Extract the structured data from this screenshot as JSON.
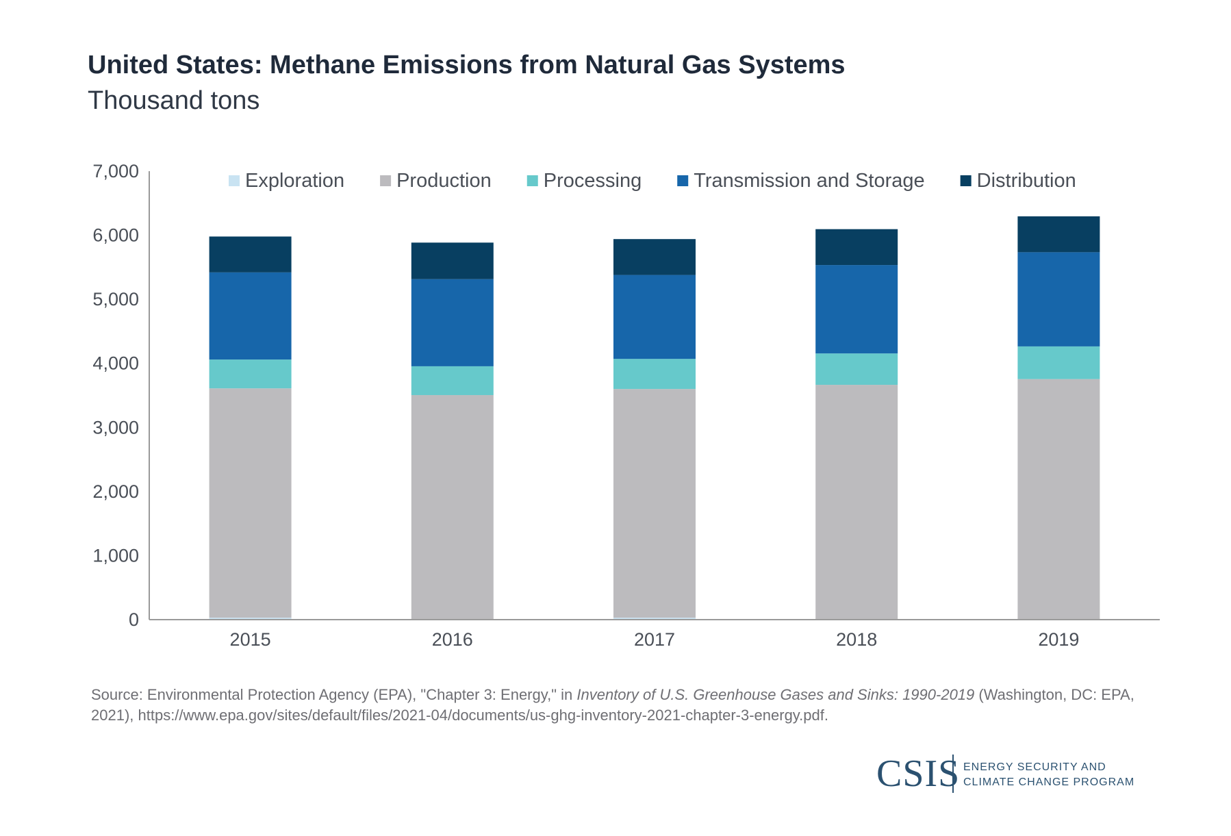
{
  "header": {
    "title": "United States: Methane Emissions from Natural Gas Systems",
    "subtitle": "Thousand tons"
  },
  "chart_data": {
    "type": "bar",
    "stacked": true,
    "title": "United States: Methane Emissions from Natural Gas Systems",
    "ylabel": "Thousand tons",
    "xlabel": "",
    "categories": [
      "2015",
      "2016",
      "2017",
      "2018",
      "2019"
    ],
    "series": [
      {
        "name": "Exploration",
        "color": "#c9e3f2",
        "values": [
          30,
          5,
          30,
          5,
          5
        ]
      },
      {
        "name": "Production",
        "color": "#bcbbbe",
        "values": [
          3580,
          3500,
          3570,
          3660,
          3750
        ]
      },
      {
        "name": "Processing",
        "color": "#66c9cb",
        "values": [
          450,
          450,
          470,
          490,
          510
        ]
      },
      {
        "name": "Transmission and Storage",
        "color": "#1766aa",
        "values": [
          1360,
          1360,
          1310,
          1380,
          1470
        ]
      },
      {
        "name": "Distribution",
        "color": "#083f61",
        "values": [
          560,
          570,
          560,
          560,
          560
        ]
      }
    ],
    "ylim": [
      0,
      7000
    ],
    "yticks": [
      0,
      1000,
      2000,
      3000,
      4000,
      5000,
      6000,
      7000
    ],
    "ytick_labels": [
      "0",
      "1,000",
      "2,000",
      "3,000",
      "4,000",
      "5,000",
      "6,000",
      "7,000"
    ],
    "grid": false,
    "legend_position": "top"
  },
  "source": {
    "prefix": "Source: Environmental Protection Agency (EPA), \"Chapter 3: Energy,\" in ",
    "publication": "Inventory of U.S. Greenhouse Gases and Sinks: 1990-2019",
    "suffix": " (Washington, DC: EPA, 2021), https://www.epa.gov/sites/default/files/2021-04/documents/us-ghg-inventory-2021-chapter-3-energy.pdf."
  },
  "logo": {
    "wordmark": "CSIS",
    "program_line1": "ENERGY SECURITY AND",
    "program_line2": "CLIMATE CHANGE PROGRAM"
  }
}
